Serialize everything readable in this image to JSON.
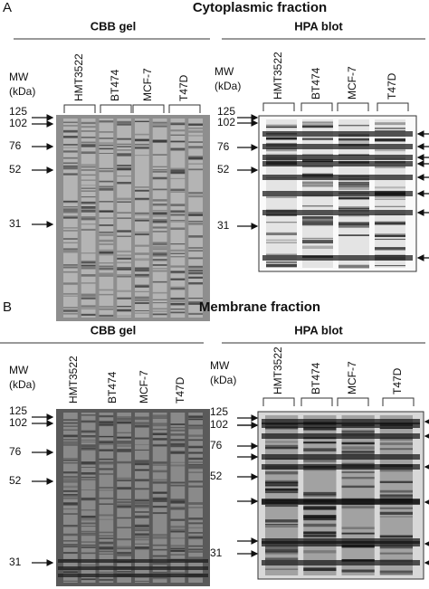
{
  "panels": [
    {
      "label": "A",
      "title": "Cytoplasmic fraction",
      "gels": [
        {
          "title": "CBB gel",
          "mw_label": "MW",
          "mw_unit": "(kDa)",
          "lanes": [
            "HMT3522",
            "BT474",
            "MCF-7",
            "T47D"
          ],
          "markers": [
            125,
            102,
            76,
            52,
            31
          ]
        },
        {
          "title": "HPA blot",
          "mw_label": "MW",
          "mw_unit": "(kDa)",
          "lanes": [
            "HMT3522",
            "BT474",
            "MCF-7",
            "T47D"
          ],
          "markers": [
            125,
            102,
            76,
            52,
            31
          ]
        }
      ]
    },
    {
      "label": "B",
      "title": "Membrane fraction",
      "gels": [
        {
          "title": "CBB gel",
          "mw_label": "MW",
          "mw_unit": "(kDa)",
          "lanes": [
            "HMT3522",
            "BT474",
            "MCF-7",
            "T47D"
          ],
          "markers": [
            125,
            102,
            76,
            52,
            31
          ]
        },
        {
          "title": "HPA blot",
          "mw_label": "MW",
          "mw_unit": "(kDa)",
          "lanes": [
            "HMT3522",
            "BT474",
            "MCF-7",
            "T47D"
          ],
          "markers": [
            125,
            102,
            76,
            52,
            31
          ]
        }
      ]
    }
  ]
}
